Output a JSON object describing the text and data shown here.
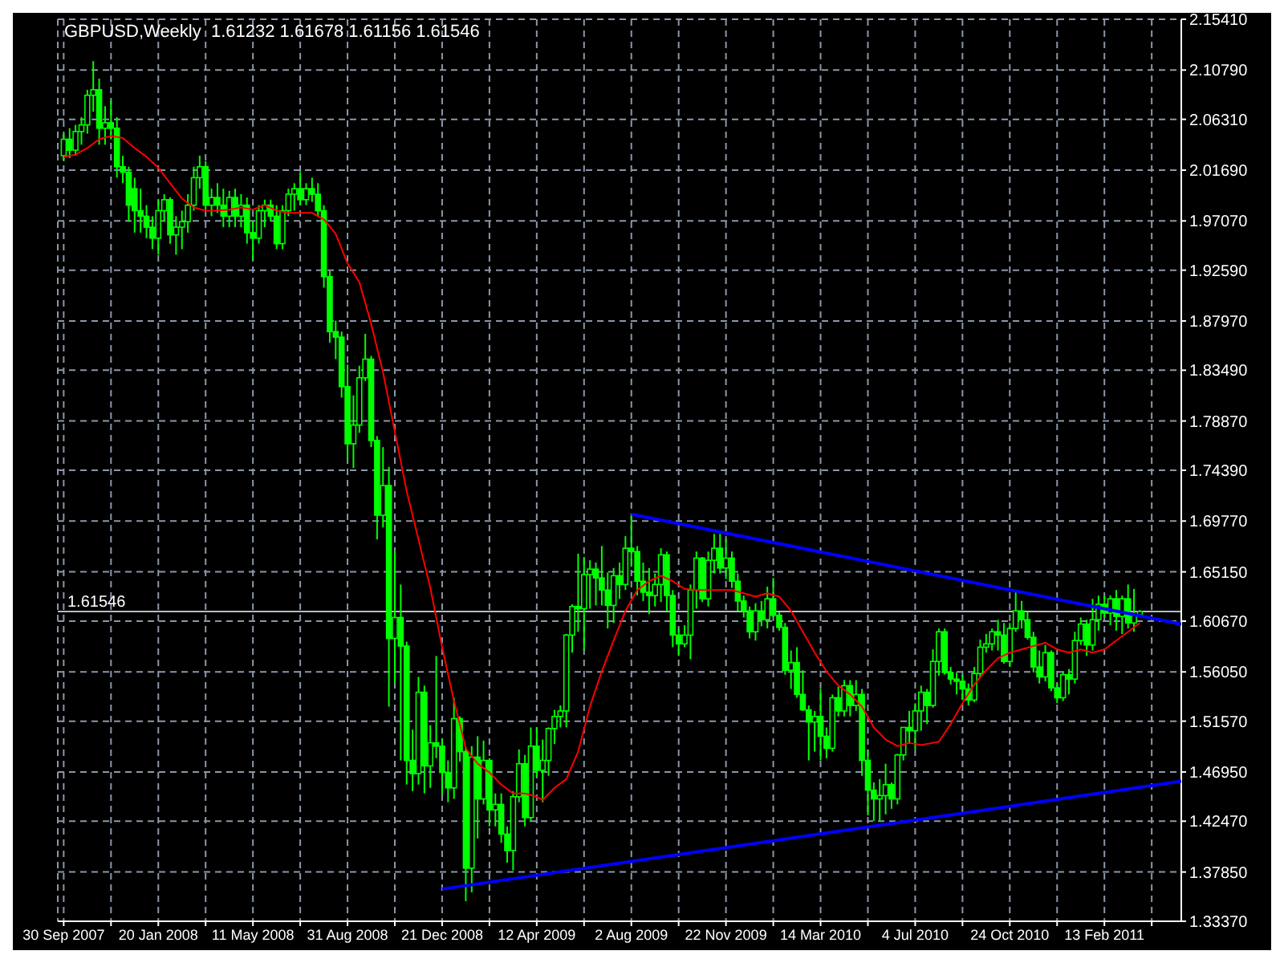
{
  "chart_data": {
    "type": "candlestick",
    "title": "GBPUSD,Weekly  1.61232 1.61678 1.61156 1.61546",
    "color": "#00ff00",
    "grid": true,
    "marker": "none",
    "x": [
      "2007-09-30",
      "2007-10-07",
      "2007-10-14",
      "2007-10-21",
      "2007-10-28",
      "2007-11-04",
      "2007-11-11",
      "2007-11-18",
      "2007-11-25",
      "2007-12-02",
      "2007-12-09",
      "2007-12-16",
      "2007-12-23",
      "2007-12-30",
      "2008-01-06",
      "2008-01-13",
      "2008-01-20",
      "2008-01-27",
      "2008-02-03",
      "2008-02-10",
      "2008-02-17",
      "2008-02-24",
      "2008-03-02",
      "2008-03-09",
      "2008-03-16",
      "2008-03-23",
      "2008-03-30",
      "2008-04-06",
      "2008-04-13",
      "2008-04-20",
      "2008-04-27",
      "2008-05-04",
      "2008-05-11",
      "2008-05-18",
      "2008-05-25",
      "2008-06-01",
      "2008-06-08",
      "2008-06-15",
      "2008-06-22",
      "2008-06-29",
      "2008-07-06",
      "2008-07-13",
      "2008-07-20",
      "2008-07-27",
      "2008-08-03",
      "2008-08-10",
      "2008-08-17",
      "2008-08-24",
      "2008-08-31",
      "2008-09-07",
      "2008-09-14",
      "2008-09-21",
      "2008-09-28",
      "2008-10-05",
      "2008-10-12",
      "2008-10-19",
      "2008-10-26",
      "2008-11-02",
      "2008-11-09",
      "2008-11-16",
      "2008-11-23",
      "2008-11-30",
      "2008-12-07",
      "2008-12-14",
      "2008-12-21",
      "2008-12-28",
      "2009-01-04",
      "2009-01-11",
      "2009-01-18",
      "2009-01-25",
      "2009-02-01",
      "2009-02-08",
      "2009-02-15",
      "2009-02-22",
      "2009-03-01",
      "2009-03-08",
      "2009-03-15",
      "2009-03-22",
      "2009-03-29",
      "2009-04-05",
      "2009-04-12",
      "2009-04-19",
      "2009-04-26",
      "2009-05-03",
      "2009-05-10",
      "2009-05-17",
      "2009-05-24",
      "2009-05-31",
      "2009-06-07",
      "2009-06-14",
      "2009-06-21",
      "2009-06-28",
      "2009-07-05",
      "2009-07-12",
      "2009-07-19",
      "2009-07-26",
      "2009-08-02",
      "2009-08-09",
      "2009-08-16",
      "2009-08-23",
      "2009-08-30",
      "2009-09-06",
      "2009-09-13",
      "2009-09-20",
      "2009-09-27",
      "2009-10-04",
      "2009-10-11",
      "2009-10-18",
      "2009-10-25",
      "2009-11-01",
      "2009-11-08",
      "2009-11-15",
      "2009-11-22",
      "2009-11-29",
      "2009-12-06",
      "2009-12-13",
      "2009-12-20",
      "2009-12-27",
      "2010-01-03",
      "2010-01-10",
      "2010-01-17",
      "2010-01-24",
      "2010-01-31",
      "2010-02-07",
      "2010-02-14",
      "2010-02-21",
      "2010-02-28",
      "2010-03-07",
      "2010-03-14",
      "2010-03-21",
      "2010-03-28",
      "2010-04-04",
      "2010-04-11",
      "2010-04-18",
      "2010-04-25",
      "2010-05-02",
      "2010-05-09",
      "2010-05-16",
      "2010-05-23",
      "2010-05-30",
      "2010-06-06",
      "2010-06-13",
      "2010-06-20",
      "2010-06-27",
      "2010-07-04",
      "2010-07-11",
      "2010-07-18",
      "2010-07-25",
      "2010-08-01",
      "2010-08-08",
      "2010-08-15",
      "2010-08-22",
      "2010-08-29",
      "2010-09-05",
      "2010-09-12",
      "2010-09-19",
      "2010-09-26",
      "2010-10-03",
      "2010-10-10",
      "2010-10-17",
      "2010-10-24",
      "2010-10-31",
      "2010-11-07",
      "2010-11-14",
      "2010-11-21",
      "2010-11-28",
      "2010-12-05",
      "2010-12-12",
      "2010-12-19",
      "2010-12-26",
      "2011-01-02",
      "2011-01-09",
      "2011-01-16",
      "2011-01-23",
      "2011-01-30",
      "2011-02-06",
      "2011-02-13",
      "2011-02-20",
      "2011-02-27",
      "2011-03-06",
      "2011-03-13",
      "2011-03-20",
      "2011-03-27"
    ],
    "ohlc": [
      [
        2.03,
        2.05,
        2.025,
        2.045
      ],
      [
        2.045,
        2.055,
        2.028,
        2.035
      ],
      [
        2.035,
        2.058,
        2.03,
        2.052
      ],
      [
        2.052,
        2.065,
        2.04,
        2.058
      ],
      [
        2.058,
        2.09,
        2.05,
        2.085
      ],
      [
        2.085,
        2.116,
        2.07,
        2.09
      ],
      [
        2.09,
        2.1,
        2.04,
        2.055
      ],
      [
        2.055,
        2.075,
        2.04,
        2.06
      ],
      [
        2.06,
        2.08,
        2.045,
        2.055
      ],
      [
        2.055,
        2.065,
        2.01,
        2.02
      ],
      [
        2.02,
        2.03,
        2.005,
        2.015
      ],
      [
        2.015,
        2.02,
        1.97,
        1.985
      ],
      [
        2.0,
        2.01,
        1.96,
        1.98
      ],
      [
        1.98,
        2.0,
        1.96,
        1.975
      ],
      [
        1.975,
        1.985,
        1.955,
        1.965
      ],
      [
        1.965,
        1.975,
        1.945,
        1.955
      ],
      [
        1.955,
        1.99,
        1.94,
        1.98
      ],
      [
        1.98,
        1.995,
        1.97,
        1.99
      ],
      [
        1.99,
        1.992,
        1.95,
        1.958
      ],
      [
        1.958,
        1.975,
        1.94,
        1.965
      ],
      [
        1.965,
        1.98,
        1.945,
        1.97
      ],
      [
        1.97,
        1.995,
        1.96,
        1.985
      ],
      [
        1.985,
        2.02,
        1.98,
        2.01
      ],
      [
        2.01,
        2.03,
        2.0,
        2.02
      ],
      [
        2.02,
        2.025,
        1.98,
        1.985
      ],
      [
        1.985,
        2.0,
        1.975,
        1.992
      ],
      [
        1.992,
        2.005,
        1.978,
        1.985
      ],
      [
        1.985,
        2.0,
        1.965,
        1.975
      ],
      [
        1.975,
        1.998,
        1.965,
        1.992
      ],
      [
        1.992,
        2.0,
        1.965,
        1.975
      ],
      [
        1.975,
        1.995,
        1.965,
        1.985
      ],
      [
        1.985,
        1.992,
        1.95,
        1.96
      ],
      [
        1.96,
        1.97,
        1.935,
        1.955
      ],
      [
        1.955,
        1.985,
        1.95,
        1.98
      ],
      [
        1.98,
        1.99,
        1.965,
        1.985
      ],
      [
        1.985,
        1.99,
        1.97,
        1.975
      ],
      [
        1.975,
        1.985,
        1.945,
        1.95
      ],
      [
        1.95,
        1.985,
        1.945,
        1.98
      ],
      [
        1.98,
        2.0,
        1.975,
        1.995
      ],
      [
        1.995,
        2.005,
        1.98,
        2.0
      ],
      [
        2.0,
        2.015,
        1.985,
        1.99
      ],
      [
        1.99,
        2.005,
        1.985,
        2.0
      ],
      [
        2.0,
        2.01,
        1.988,
        1.995
      ],
      [
        1.995,
        2.005,
        1.975,
        1.98
      ],
      [
        1.98,
        1.985,
        1.91,
        1.92
      ],
      [
        1.92,
        1.925,
        1.86,
        1.87
      ],
      [
        1.87,
        1.88,
        1.845,
        1.865
      ],
      [
        1.865,
        1.87,
        1.81,
        1.82
      ],
      [
        1.82,
        1.84,
        1.754,
        1.768
      ],
      [
        1.768,
        1.812,
        1.746,
        1.785
      ],
      [
        1.785,
        1.839,
        1.778,
        1.828
      ],
      [
        1.828,
        1.868,
        1.825,
        1.845
      ],
      [
        1.845,
        1.848,
        1.765,
        1.771
      ],
      [
        1.771,
        1.775,
        1.681,
        1.703
      ],
      [
        1.703,
        1.765,
        1.692,
        1.73
      ],
      [
        1.73,
        1.747,
        1.529,
        1.591
      ],
      [
        1.591,
        1.67,
        1.55,
        1.61
      ],
      [
        1.61,
        1.64,
        1.48,
        1.584
      ],
      [
        1.584,
        1.588,
        1.458,
        1.48
      ],
      [
        1.48,
        1.508,
        1.452,
        1.468
      ],
      [
        1.468,
        1.556,
        1.458,
        1.542
      ],
      [
        1.542,
        1.548,
        1.45,
        1.475
      ],
      [
        1.475,
        1.512,
        1.455,
        1.496
      ],
      [
        1.496,
        1.575,
        1.482,
        1.493
      ],
      [
        1.493,
        1.5,
        1.449,
        1.469
      ],
      [
        1.469,
        1.48,
        1.442,
        1.455
      ],
      [
        1.455,
        1.537,
        1.445,
        1.518
      ],
      [
        1.518,
        1.52,
        1.479,
        1.488
      ],
      [
        1.488,
        1.492,
        1.352,
        1.382
      ],
      [
        1.382,
        1.493,
        1.36,
        1.483
      ],
      [
        1.483,
        1.502,
        1.409,
        1.445
      ],
      [
        1.445,
        1.498,
        1.44,
        1.48
      ],
      [
        1.48,
        1.482,
        1.42,
        1.435
      ],
      [
        1.435,
        1.45,
        1.42,
        1.44
      ],
      [
        1.44,
        1.45,
        1.405,
        1.413
      ],
      [
        1.413,
        1.42,
        1.387,
        1.398
      ],
      [
        1.398,
        1.452,
        1.38,
        1.447
      ],
      [
        1.447,
        1.49,
        1.442,
        1.477
      ],
      [
        1.477,
        1.485,
        1.42,
        1.428
      ],
      [
        1.428,
        1.51,
        1.425,
        1.493
      ],
      [
        1.493,
        1.51,
        1.465,
        1.471
      ],
      [
        1.471,
        1.499,
        1.442,
        1.48
      ],
      [
        1.48,
        1.51,
        1.466,
        1.509
      ],
      [
        1.509,
        1.526,
        1.495,
        1.52
      ],
      [
        1.52,
        1.53,
        1.51,
        1.525
      ],
      [
        1.525,
        1.595,
        1.51,
        1.594
      ],
      [
        1.594,
        1.622,
        1.578,
        1.62
      ],
      [
        1.62,
        1.668,
        1.597,
        1.618
      ],
      [
        1.618,
        1.665,
        1.58,
        1.649
      ],
      [
        1.649,
        1.662,
        1.618,
        1.654
      ],
      [
        1.654,
        1.66,
        1.621,
        1.646
      ],
      [
        1.646,
        1.675,
        1.621,
        1.635
      ],
      [
        1.635,
        1.651,
        1.6,
        1.621
      ],
      [
        1.621,
        1.655,
        1.605,
        1.648
      ],
      [
        1.648,
        1.66,
        1.627,
        1.64
      ],
      [
        1.64,
        1.684,
        1.635,
        1.673
      ],
      [
        1.673,
        1.703,
        1.656,
        1.67
      ],
      [
        1.67,
        1.675,
        1.63,
        1.643
      ],
      [
        1.643,
        1.66,
        1.625,
        1.633
      ],
      [
        1.633,
        1.655,
        1.613,
        1.63
      ],
      [
        1.63,
        1.65,
        1.62,
        1.64
      ],
      [
        1.64,
        1.673,
        1.624,
        1.667
      ],
      [
        1.667,
        1.67,
        1.616,
        1.63
      ],
      [
        1.63,
        1.635,
        1.583,
        1.594
      ],
      [
        1.594,
        1.6,
        1.575,
        1.586
      ],
      [
        1.586,
        1.603,
        1.583,
        1.594
      ],
      [
        1.594,
        1.64,
        1.572,
        1.635
      ],
      [
        1.635,
        1.67,
        1.618,
        1.664
      ],
      [
        1.664,
        1.665,
        1.624,
        1.627
      ],
      [
        1.627,
        1.67,
        1.62,
        1.662
      ],
      [
        1.662,
        1.686,
        1.65,
        1.673
      ],
      [
        1.673,
        1.686,
        1.65,
        1.655
      ],
      [
        1.655,
        1.681,
        1.645,
        1.664
      ],
      [
        1.664,
        1.67,
        1.637,
        1.643
      ],
      [
        1.643,
        1.65,
        1.616,
        1.625
      ],
      [
        1.625,
        1.63,
        1.61,
        1.616
      ],
      [
        1.616,
        1.62,
        1.591,
        1.597
      ],
      [
        1.597,
        1.623,
        1.589,
        1.616
      ],
      [
        1.616,
        1.625,
        1.602,
        1.608
      ],
      [
        1.608,
        1.638,
        1.6,
        1.627
      ],
      [
        1.627,
        1.646,
        1.61,
        1.612
      ],
      [
        1.612,
        1.615,
        1.598,
        1.601
      ],
      [
        1.601,
        1.605,
        1.558,
        1.562
      ],
      [
        1.562,
        1.58,
        1.545,
        1.569
      ],
      [
        1.569,
        1.583,
        1.537,
        1.54
      ],
      [
        1.54,
        1.562,
        1.525,
        1.526
      ],
      [
        1.526,
        1.53,
        1.48,
        1.515
      ],
      [
        1.515,
        1.525,
        1.488,
        1.52
      ],
      [
        1.52,
        1.545,
        1.48,
        1.502
      ],
      [
        1.502,
        1.51,
        1.482,
        1.491
      ],
      [
        1.491,
        1.54,
        1.488,
        1.537
      ],
      [
        1.537,
        1.547,
        1.52,
        1.525
      ],
      [
        1.525,
        1.553,
        1.52,
        1.548
      ],
      [
        1.548,
        1.553,
        1.52,
        1.53
      ],
      [
        1.53,
        1.553,
        1.525,
        1.54
      ],
      [
        1.54,
        1.545,
        1.466,
        1.48
      ],
      [
        1.48,
        1.49,
        1.43,
        1.453
      ],
      [
        1.453,
        1.46,
        1.425,
        1.445
      ],
      [
        1.445,
        1.463,
        1.425,
        1.448
      ],
      [
        1.448,
        1.477,
        1.431,
        1.458
      ],
      [
        1.458,
        1.46,
        1.436,
        1.445
      ],
      [
        1.445,
        1.486,
        1.44,
        1.485
      ],
      [
        1.485,
        1.51,
        1.48,
        1.51
      ],
      [
        1.51,
        1.525,
        1.495,
        1.507
      ],
      [
        1.507,
        1.532,
        1.49,
        1.525
      ],
      [
        1.525,
        1.548,
        1.507,
        1.542
      ],
      [
        1.542,
        1.545,
        1.513,
        1.53
      ],
      [
        1.53,
        1.581,
        1.528,
        1.57
      ],
      [
        1.57,
        1.6,
        1.557,
        1.597
      ],
      [
        1.597,
        1.6,
        1.558,
        1.56
      ],
      [
        1.56,
        1.565,
        1.549,
        1.554
      ],
      [
        1.554,
        1.56,
        1.54,
        1.552
      ],
      [
        1.552,
        1.558,
        1.535,
        1.545
      ],
      [
        1.545,
        1.55,
        1.53,
        1.535
      ],
      [
        1.535,
        1.565,
        1.533,
        1.559
      ],
      [
        1.559,
        1.59,
        1.555,
        1.583
      ],
      [
        1.583,
        1.595,
        1.578,
        1.586
      ],
      [
        1.586,
        1.6,
        1.58,
        1.597
      ],
      [
        1.597,
        1.608,
        1.58,
        1.594
      ],
      [
        1.594,
        1.605,
        1.568,
        1.57
      ],
      [
        1.57,
        1.605,
        1.565,
        1.6
      ],
      [
        1.6,
        1.633,
        1.597,
        1.616
      ],
      [
        1.616,
        1.625,
        1.6,
        1.608
      ],
      [
        1.608,
        1.615,
        1.59,
        1.592
      ],
      [
        1.592,
        1.597,
        1.56,
        1.565
      ],
      [
        1.565,
        1.58,
        1.55,
        1.556
      ],
      [
        1.556,
        1.585,
        1.552,
        1.578
      ],
      [
        1.578,
        1.58,
        1.543,
        1.546
      ],
      [
        1.546,
        1.55,
        1.532,
        1.537
      ],
      [
        1.537,
        1.56,
        1.534,
        1.558
      ],
      [
        1.558,
        1.563,
        1.54,
        1.554
      ],
      [
        1.554,
        1.597,
        1.55,
        1.589
      ],
      [
        1.589,
        1.61,
        1.585,
        1.604
      ],
      [
        1.604,
        1.608,
        1.575,
        1.585
      ],
      [
        1.585,
        1.627,
        1.58,
        1.608
      ],
      [
        1.608,
        1.63,
        1.598,
        1.622
      ],
      [
        1.622,
        1.63,
        1.61,
        1.614
      ],
      [
        1.614,
        1.63,
        1.603,
        1.627
      ],
      [
        1.627,
        1.635,
        1.598,
        1.611
      ],
      [
        1.611,
        1.63,
        1.595,
        1.627
      ],
      [
        1.627,
        1.64,
        1.6,
        1.605
      ],
      [
        1.605,
        1.636,
        1.597,
        1.612
      ],
      [
        1.61232,
        1.61678,
        1.61156,
        1.61546
      ]
    ],
    "series": [
      {
        "type": "line",
        "color": "#ff0000",
        "x": [
          "2007-09-30",
          "2007-10-14",
          "2007-10-28",
          "2007-11-11",
          "2007-11-25",
          "2007-12-09",
          "2007-12-23",
          "2008-01-06",
          "2008-01-20",
          "2008-02-03",
          "2008-02-17",
          "2008-03-02",
          "2008-03-16",
          "2008-03-30",
          "2008-04-13",
          "2008-04-27",
          "2008-05-11",
          "2008-05-25",
          "2008-06-08",
          "2008-06-22",
          "2008-07-06",
          "2008-07-20",
          "2008-08-03",
          "2008-08-17",
          "2008-08-31",
          "2008-09-14",
          "2008-09-28",
          "2008-10-12",
          "2008-10-26",
          "2008-11-09",
          "2008-11-23",
          "2008-12-07",
          "2008-12-21",
          "2009-01-04",
          "2009-01-18",
          "2009-02-01",
          "2009-02-15",
          "2009-03-01",
          "2009-03-15",
          "2009-03-29",
          "2009-04-12",
          "2009-04-19",
          "2009-05-03",
          "2009-05-17",
          "2009-05-31",
          "2009-06-14",
          "2009-06-28",
          "2009-07-12",
          "2009-07-26",
          "2009-08-09",
          "2009-08-23",
          "2009-09-06",
          "2009-09-20",
          "2009-10-04",
          "2009-10-18",
          "2009-11-01",
          "2009-11-15",
          "2009-11-29",
          "2009-12-13",
          "2009-12-27",
          "2010-01-10",
          "2010-01-24",
          "2010-02-07",
          "2010-02-21",
          "2010-03-07",
          "2010-03-21",
          "2010-04-04",
          "2010-04-18",
          "2010-05-02",
          "2010-05-16",
          "2010-05-30",
          "2010-06-13",
          "2010-06-27",
          "2010-07-11",
          "2010-08-01",
          "2010-08-15",
          "2010-08-29",
          "2010-09-12",
          "2010-09-26",
          "2010-10-10",
          "2010-10-24",
          "2010-11-07",
          "2010-11-21",
          "2010-12-05",
          "2010-12-19",
          "2011-01-02",
          "2011-01-16",
          "2011-01-30",
          "2011-02-13",
          "2011-02-27",
          "2011-03-13",
          "2011-03-27"
        ],
        "values": [
          2.029,
          2.031,
          2.037,
          2.045,
          2.048,
          2.046,
          2.037,
          2.029,
          2.019,
          2.005,
          1.991,
          1.983,
          1.98,
          1.98,
          1.981,
          1.983,
          1.981,
          1.985,
          1.98,
          1.978,
          1.978,
          1.978,
          1.972,
          1.959,
          1.932,
          1.915,
          1.877,
          1.833,
          1.779,
          1.725,
          1.681,
          1.637,
          1.583,
          1.534,
          1.491,
          1.477,
          1.469,
          1.458,
          1.45,
          1.45,
          1.447,
          1.444,
          1.455,
          1.463,
          1.488,
          1.529,
          1.561,
          1.589,
          1.616,
          1.635,
          1.643,
          1.648,
          1.643,
          1.636,
          1.635,
          1.635,
          1.635,
          1.635,
          1.632,
          1.629,
          1.632,
          1.629,
          1.616,
          1.597,
          1.578,
          1.561,
          1.548,
          1.54,
          1.529,
          1.51,
          1.499,
          1.493,
          1.496,
          1.494,
          1.497,
          1.513,
          1.532,
          1.549,
          1.562,
          1.573,
          1.578,
          1.581,
          1.584,
          1.587,
          1.581,
          1.578,
          1.581,
          1.578,
          1.581,
          1.589,
          1.597,
          1.605
        ]
      },
      {
        "type": "line",
        "color": "#0000ff",
        "x": [
          "2009-08-02",
          "2011-05-15"
        ],
        "values": [
          1.704,
          1.604
        ]
      },
      {
        "type": "line",
        "color": "#0000ff",
        "x": [
          "2008-12-21",
          "2011-05-15"
        ],
        "values": [
          1.363,
          1.461
        ]
      }
    ],
    "ref_lines": [
      {
        "axis": "y",
        "value": 1.61546,
        "label": "1.61546",
        "color": "#b4bcc8"
      }
    ],
    "xlim": [
      "2007-09-23",
      "2011-05-15"
    ],
    "xticks": [
      {
        "value": "2007-09-30",
        "label": "30 Sep 2007"
      },
      {
        "value": "2007-11-25",
        "label": null
      },
      {
        "value": "2008-01-20",
        "label": "20 Jan 2008"
      },
      {
        "value": "2008-03-16",
        "label": null
      },
      {
        "value": "2008-05-11",
        "label": "11 May 2008"
      },
      {
        "value": "2008-07-06",
        "label": null
      },
      {
        "value": "2008-08-31",
        "label": "31 Aug 2008"
      },
      {
        "value": "2008-10-26",
        "label": null
      },
      {
        "value": "2008-12-21",
        "label": "21 Dec 2008"
      },
      {
        "value": "2009-02-15",
        "label": null
      },
      {
        "value": "2009-04-12",
        "label": "12 Apr 2009"
      },
      {
        "value": "2009-06-07",
        "label": null
      },
      {
        "value": "2009-08-02",
        "label": "2 Aug 2009"
      },
      {
        "value": "2009-09-27",
        "label": null
      },
      {
        "value": "2009-11-22",
        "label": "22 Nov 2009"
      },
      {
        "value": "2010-01-17",
        "label": null
      },
      {
        "value": "2010-03-14",
        "label": "14 Mar 2010"
      },
      {
        "value": "2010-05-09",
        "label": null
      },
      {
        "value": "2010-07-04",
        "label": "4 Jul 2010"
      },
      {
        "value": "2010-08-29",
        "label": null
      },
      {
        "value": "2010-10-24",
        "label": "24 Oct 2010"
      },
      {
        "value": "2010-12-19",
        "label": null
      },
      {
        "value": "2011-02-13",
        "label": "13 Feb 2011"
      },
      {
        "value": "2011-04-10",
        "label": null
      }
    ],
    "ylim": [
      1.3337,
      2.1541
    ],
    "yticks": [
      {
        "value": 1.3337,
        "label": "1.33370"
      },
      {
        "value": 1.3785,
        "label": "1.37850"
      },
      {
        "value": 1.4247,
        "label": "1.42470"
      },
      {
        "value": 1.4695,
        "label": "1.46950"
      },
      {
        "value": 1.5157,
        "label": "1.51570"
      },
      {
        "value": 1.5605,
        "label": "1.56050"
      },
      {
        "value": 1.6067,
        "label": "1.60670"
      },
      {
        "value": 1.6515,
        "label": "1.65150"
      },
      {
        "value": 1.6977,
        "label": "1.69770"
      },
      {
        "value": 1.7439,
        "label": "1.74390"
      },
      {
        "value": 1.7887,
        "label": "1.78870"
      },
      {
        "value": 1.8349,
        "label": "1.83490"
      },
      {
        "value": 1.8797,
        "label": "1.87970"
      },
      {
        "value": 1.9259,
        "label": "1.92590"
      },
      {
        "value": 1.9707,
        "label": "1.97070"
      },
      {
        "value": 2.0169,
        "label": "2.01690"
      },
      {
        "value": 2.0631,
        "label": "2.06310"
      },
      {
        "value": 2.1079,
        "label": "2.10790"
      },
      {
        "value": 2.1541,
        "label": "2.15410"
      }
    ]
  }
}
